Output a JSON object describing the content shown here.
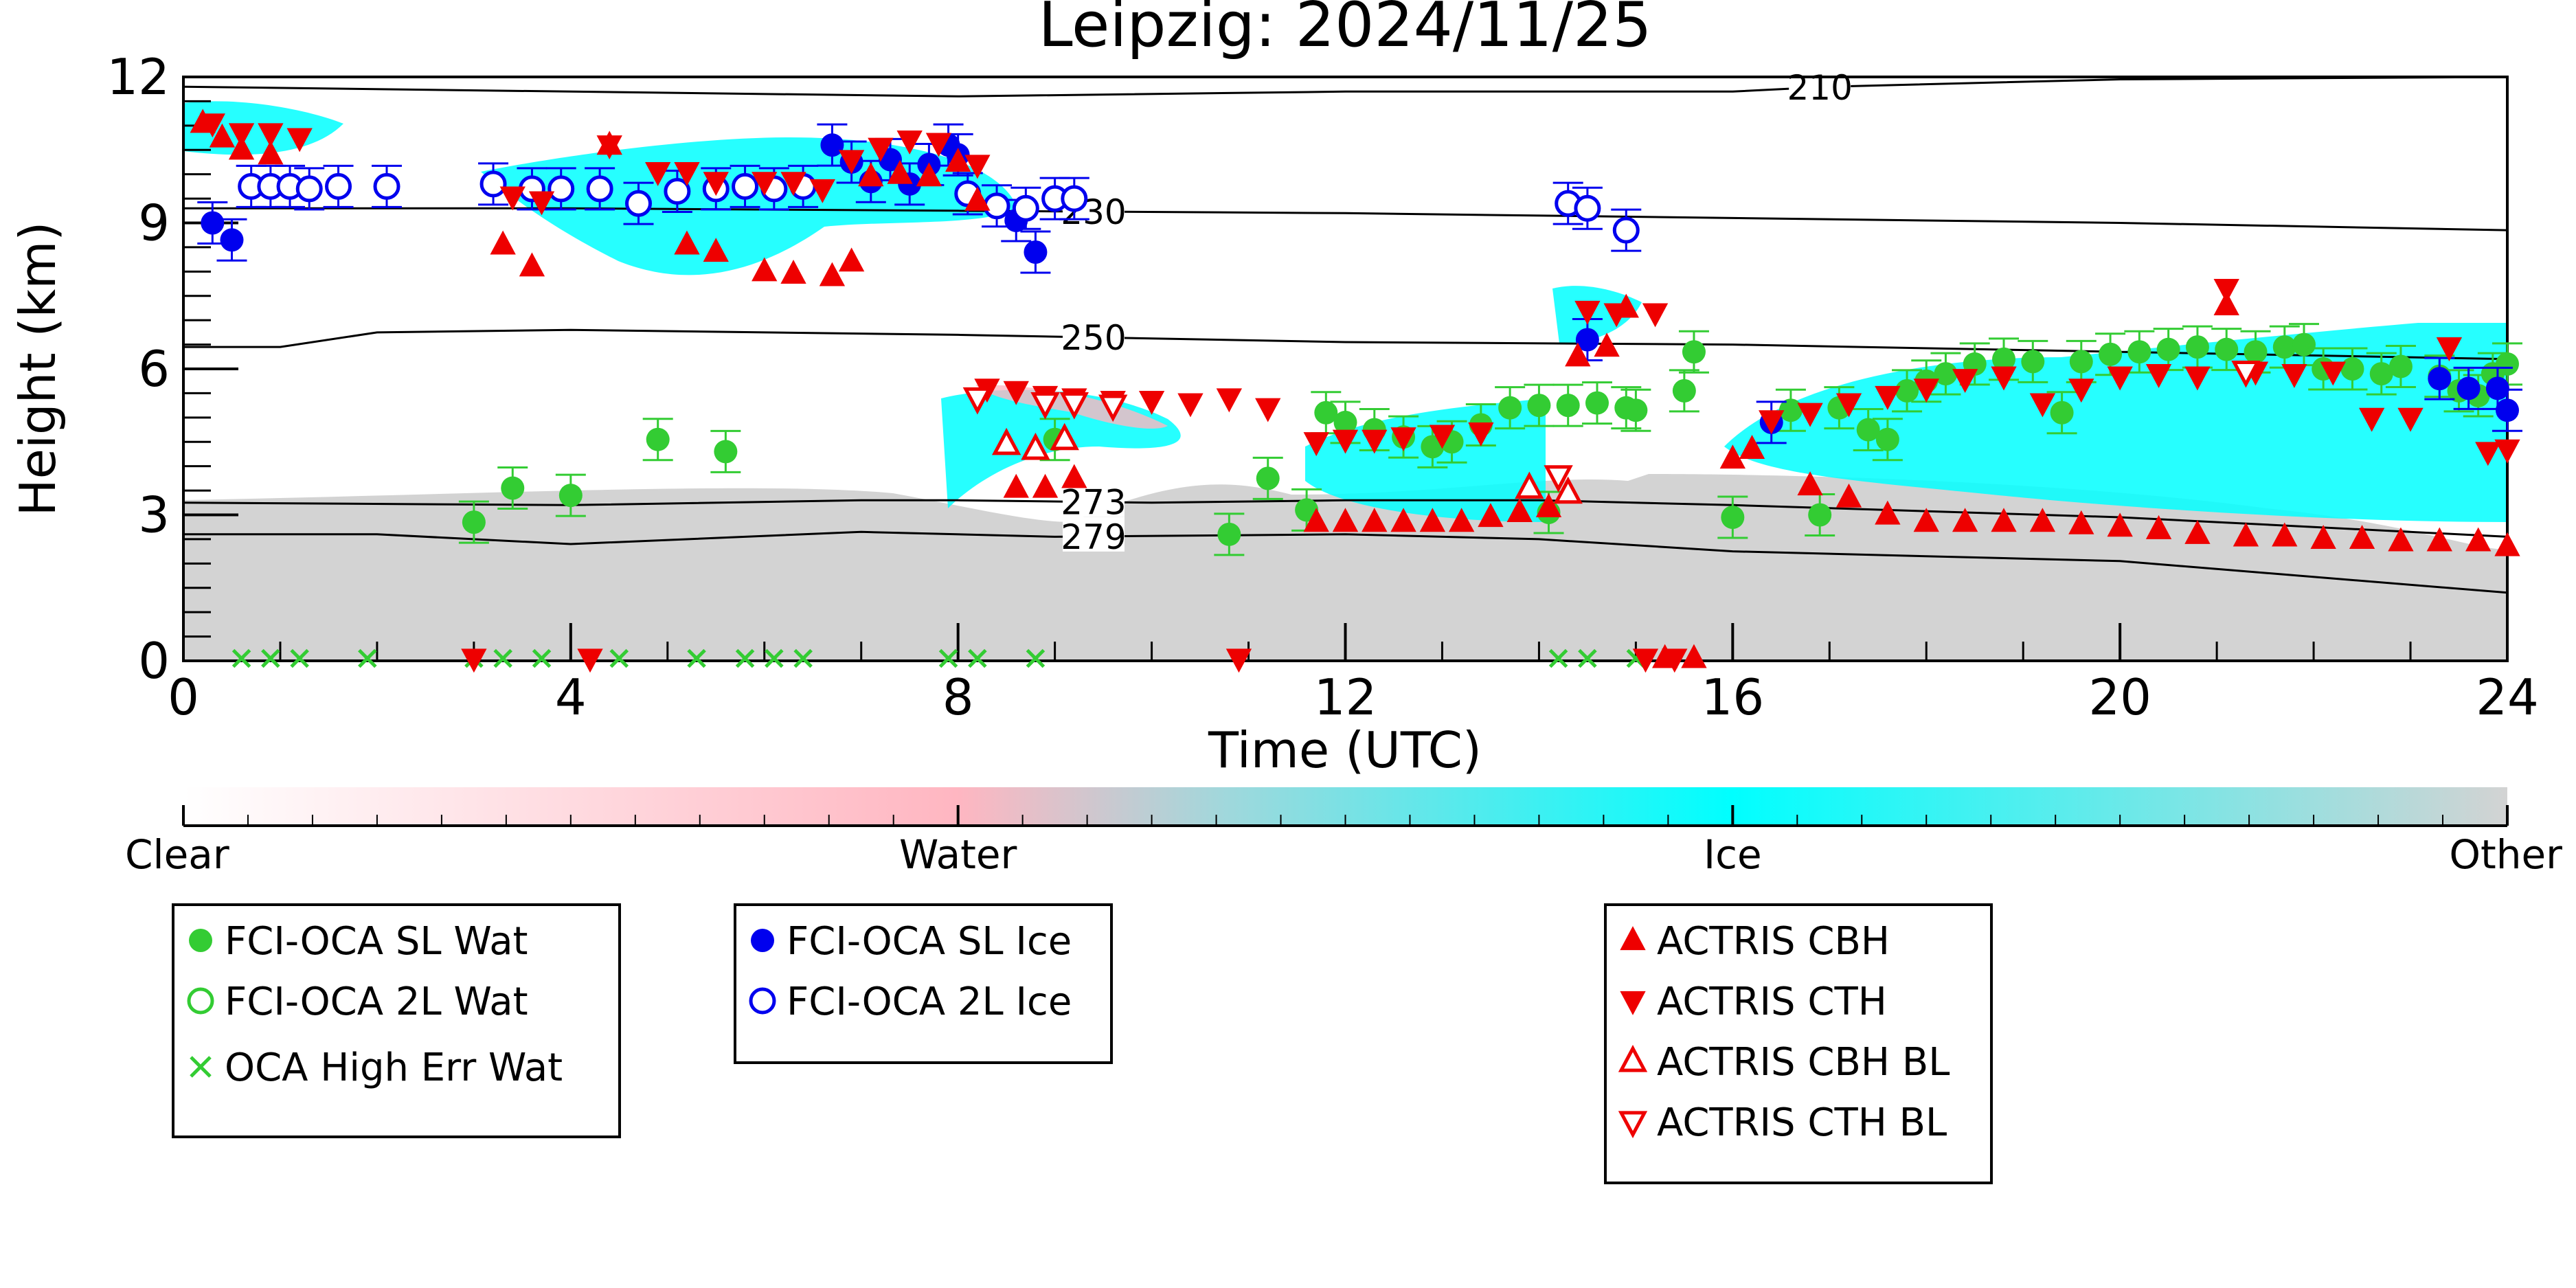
{
  "chart_data": {
    "type": "scatter",
    "title": "Leipzig: 2024/11/25",
    "xlabel": "Time (UTC)",
    "ylabel": "Height (km)",
    "xlim": [
      0,
      24
    ],
    "ylim": [
      0,
      12
    ],
    "xticks": [
      "0",
      "4",
      "8",
      "12",
      "16",
      "20",
      "24"
    ],
    "yticks": [
      "0",
      "3",
      "6",
      "9",
      "12"
    ],
    "colorbar": {
      "labels": [
        "Clear",
        "Water",
        "Ice",
        "Other"
      ],
      "colors": [
        "#ffffff",
        "#ffb6c1",
        "#00ffff",
        "#d3d3d3"
      ]
    },
    "isotherms": [
      {
        "label": "210",
        "label_x": 16.9,
        "points": [
          [
            0,
            11.8
          ],
          [
            4,
            11.7
          ],
          [
            8,
            11.6
          ],
          [
            12,
            11.7
          ],
          [
            16,
            11.7
          ],
          [
            17,
            11.8
          ],
          [
            20,
            11.95
          ],
          [
            24,
            12.0
          ]
        ]
      },
      {
        "label": "230",
        "label_x": 9.4,
        "points": [
          [
            0,
            9.3
          ],
          [
            4,
            9.3
          ],
          [
            8,
            9.25
          ],
          [
            12,
            9.2
          ],
          [
            16,
            9.1
          ],
          [
            20,
            9.0
          ],
          [
            24,
            8.85
          ]
        ]
      },
      {
        "label": "250",
        "label_x": 9.4,
        "points": [
          [
            0,
            6.45
          ],
          [
            1,
            6.45
          ],
          [
            2,
            6.75
          ],
          [
            4,
            6.8
          ],
          [
            8,
            6.7
          ],
          [
            12,
            6.55
          ],
          [
            16,
            6.5
          ],
          [
            20,
            6.35
          ],
          [
            24,
            6.2
          ]
        ]
      },
      {
        "label": "273",
        "label_x": 9.4,
        "points": [
          [
            0,
            3.25
          ],
          [
            4,
            3.2
          ],
          [
            7,
            3.3
          ],
          [
            8,
            3.3
          ],
          [
            10,
            3.25
          ],
          [
            12,
            3.3
          ],
          [
            14,
            3.3
          ],
          [
            16,
            3.2
          ],
          [
            20,
            2.95
          ],
          [
            24,
            2.55
          ]
        ]
      },
      {
        "label": "279",
        "label_x": 9.4,
        "points": [
          [
            0,
            2.6
          ],
          [
            2,
            2.6
          ],
          [
            4,
            2.4
          ],
          [
            7,
            2.65
          ],
          [
            9,
            2.55
          ],
          [
            12,
            2.6
          ],
          [
            14,
            2.5
          ],
          [
            16,
            2.25
          ],
          [
            20,
            2.05
          ],
          [
            24,
            1.4
          ]
        ]
      }
    ],
    "series": [
      {
        "name": "FCI-OCA SL Wat",
        "marker": "circle-filled",
        "color": "#33cc33",
        "points": [
          [
            3.0,
            2.85
          ],
          [
            3.4,
            3.55
          ],
          [
            4.0,
            3.4
          ],
          [
            4.9,
            4.55
          ],
          [
            5.6,
            4.3
          ],
          [
            9.0,
            4.55
          ],
          [
            10.8,
            2.6
          ],
          [
            11.2,
            3.75
          ],
          [
            11.6,
            3.1
          ],
          [
            11.8,
            5.1
          ],
          [
            12.0,
            4.9
          ],
          [
            12.3,
            4.75
          ],
          [
            12.6,
            4.6
          ],
          [
            12.9,
            4.4
          ],
          [
            13.1,
            4.5
          ],
          [
            13.4,
            4.85
          ],
          [
            13.7,
            5.2
          ],
          [
            14.0,
            5.25
          ],
          [
            14.3,
            5.25
          ],
          [
            14.6,
            5.3
          ],
          [
            15.0,
            5.15
          ],
          [
            14.1,
            3.05
          ],
          [
            14.9,
            5.2
          ],
          [
            15.5,
            5.55
          ],
          [
            15.6,
            6.35
          ],
          [
            16.0,
            2.95
          ],
          [
            16.6,
            5.15
          ],
          [
            16.9,
            3.0
          ],
          [
            17.1,
            5.2
          ],
          [
            17.4,
            4.75
          ],
          [
            17.6,
            4.55
          ],
          [
            17.8,
            5.55
          ],
          [
            18.0,
            5.75
          ],
          [
            18.2,
            5.9
          ],
          [
            18.5,
            6.1
          ],
          [
            18.8,
            6.2
          ],
          [
            19.1,
            6.15
          ],
          [
            19.4,
            5.1
          ],
          [
            19.6,
            6.15
          ],
          [
            19.9,
            6.3
          ],
          [
            20.2,
            6.35
          ],
          [
            20.5,
            6.4
          ],
          [
            20.8,
            6.45
          ],
          [
            21.1,
            6.4
          ],
          [
            21.4,
            6.35
          ],
          [
            21.7,
            6.45
          ],
          [
            21.9,
            6.5
          ],
          [
            22.1,
            6.0
          ],
          [
            22.4,
            6.0
          ],
          [
            22.7,
            5.9
          ],
          [
            22.9,
            6.05
          ],
          [
            23.3,
            5.85
          ],
          [
            23.5,
            5.55
          ],
          [
            23.7,
            5.45
          ],
          [
            23.85,
            5.9
          ],
          [
            24.0,
            6.1
          ]
        ]
      },
      {
        "name": "FCI-OCA 2L Wat",
        "marker": "circle-open",
        "color": "#33cc33",
        "points": []
      },
      {
        "name": "OCA High Err Wat",
        "marker": "x",
        "color": "#33cc33",
        "points": [
          [
            0.6,
            0.05
          ],
          [
            0.9,
            0.05
          ],
          [
            1.2,
            0.05
          ],
          [
            1.9,
            0.05
          ],
          [
            3.0,
            0.05
          ],
          [
            3.3,
            0.05
          ],
          [
            3.7,
            0.05
          ],
          [
            4.5,
            0.05
          ],
          [
            5.3,
            0.05
          ],
          [
            5.8,
            0.05
          ],
          [
            6.1,
            0.05
          ],
          [
            6.4,
            0.05
          ],
          [
            7.9,
            0.05
          ],
          [
            8.2,
            0.05
          ],
          [
            8.8,
            0.05
          ],
          [
            14.2,
            0.05
          ],
          [
            14.5,
            0.05
          ],
          [
            15.0,
            0.05
          ]
        ]
      },
      {
        "name": "FCI-OCA SL Ice",
        "marker": "circle-filled",
        "color": "#0000ee",
        "points": [
          [
            0.3,
            9.0
          ],
          [
            0.5,
            8.65
          ],
          [
            6.7,
            10.6
          ],
          [
            6.9,
            10.25
          ],
          [
            7.1,
            9.85
          ],
          [
            7.3,
            10.3
          ],
          [
            7.5,
            9.8
          ],
          [
            7.7,
            10.2
          ],
          [
            7.9,
            10.6
          ],
          [
            8.0,
            10.4
          ],
          [
            8.6,
            9.05
          ],
          [
            8.8,
            8.4
          ],
          [
            14.5,
            6.6
          ],
          [
            16.4,
            4.9
          ],
          [
            23.3,
            5.8
          ],
          [
            23.6,
            5.6
          ],
          [
            23.9,
            5.6
          ],
          [
            24.0,
            5.15
          ]
        ]
      },
      {
        "name": "FCI-OCA 2L Ice",
        "marker": "circle-open",
        "color": "#0000ee",
        "points": [
          [
            0.7,
            9.75
          ],
          [
            0.9,
            9.75
          ],
          [
            1.1,
            9.75
          ],
          [
            1.3,
            9.7
          ],
          [
            1.6,
            9.75
          ],
          [
            2.1,
            9.75
          ],
          [
            3.2,
            9.8
          ],
          [
            3.6,
            9.7
          ],
          [
            3.9,
            9.7
          ],
          [
            4.3,
            9.7
          ],
          [
            4.7,
            9.4
          ],
          [
            5.1,
            9.65
          ],
          [
            5.5,
            9.7
          ],
          [
            5.8,
            9.75
          ],
          [
            6.1,
            9.7
          ],
          [
            6.4,
            9.75
          ],
          [
            8.1,
            9.6
          ],
          [
            8.4,
            9.35
          ],
          [
            8.7,
            9.3
          ],
          [
            9.0,
            9.5
          ],
          [
            9.2,
            9.5
          ],
          [
            14.3,
            9.4
          ],
          [
            14.5,
            9.3
          ],
          [
            14.9,
            8.85
          ]
        ]
      },
      {
        "name": "ACTRIS CBH",
        "marker": "triangle-up-filled",
        "color": "#ee0000",
        "points": [
          [
            0.2,
            11.05
          ],
          [
            0.4,
            10.75
          ],
          [
            0.6,
            10.5
          ],
          [
            0.9,
            10.4
          ],
          [
            3.3,
            8.55
          ],
          [
            3.6,
            8.1
          ],
          [
            4.4,
            10.6
          ],
          [
            5.2,
            8.55
          ],
          [
            5.5,
            8.4
          ],
          [
            6.0,
            8.0
          ],
          [
            6.3,
            7.95
          ],
          [
            6.7,
            7.9
          ],
          [
            6.9,
            8.2
          ],
          [
            7.1,
            9.95
          ],
          [
            7.4,
            10.0
          ],
          [
            7.7,
            9.95
          ],
          [
            8.0,
            10.25
          ],
          [
            8.2,
            9.45
          ],
          [
            8.6,
            3.55
          ],
          [
            8.9,
            3.55
          ],
          [
            9.2,
            3.75
          ],
          [
            11.7,
            2.85
          ],
          [
            12.0,
            2.85
          ],
          [
            12.3,
            2.85
          ],
          [
            12.6,
            2.85
          ],
          [
            12.9,
            2.85
          ],
          [
            13.2,
            2.85
          ],
          [
            13.5,
            2.95
          ],
          [
            13.8,
            3.05
          ],
          [
            14.1,
            3.15
          ],
          [
            14.4,
            6.25
          ],
          [
            14.7,
            6.45
          ],
          [
            14.9,
            7.25
          ],
          [
            16.0,
            4.15
          ],
          [
            16.2,
            4.35
          ],
          [
            16.8,
            3.6
          ],
          [
            17.2,
            3.35
          ],
          [
            17.6,
            3.0
          ],
          [
            18.0,
            2.85
          ],
          [
            18.4,
            2.85
          ],
          [
            18.8,
            2.85
          ],
          [
            19.2,
            2.85
          ],
          [
            19.6,
            2.8
          ],
          [
            20.0,
            2.75
          ],
          [
            20.4,
            2.7
          ],
          [
            20.8,
            2.6
          ],
          [
            21.1,
            7.3
          ],
          [
            21.3,
            2.55
          ],
          [
            21.7,
            2.55
          ],
          [
            22.1,
            2.5
          ],
          [
            22.5,
            2.5
          ],
          [
            22.9,
            2.45
          ],
          [
            23.3,
            2.45
          ],
          [
            23.7,
            2.45
          ],
          [
            24.0,
            2.35
          ],
          [
            15.3,
            0.05
          ],
          [
            15.6,
            0.05
          ]
        ]
      },
      {
        "name": "ACTRIS CTH",
        "marker": "triangle-down-filled",
        "color": "#ee0000",
        "points": [
          [
            0.3,
            11.05
          ],
          [
            0.6,
            10.85
          ],
          [
            0.9,
            10.85
          ],
          [
            1.2,
            10.75
          ],
          [
            3.4,
            9.55
          ],
          [
            3.7,
            9.45
          ],
          [
            4.4,
            10.6
          ],
          [
            4.9,
            10.05
          ],
          [
            5.2,
            10.05
          ],
          [
            5.5,
            9.85
          ],
          [
            6.0,
            9.85
          ],
          [
            6.3,
            9.85
          ],
          [
            6.6,
            9.7
          ],
          [
            6.9,
            10.3
          ],
          [
            7.2,
            10.55
          ],
          [
            7.5,
            10.7
          ],
          [
            7.8,
            10.65
          ],
          [
            8.2,
            10.2
          ],
          [
            8.3,
            5.6
          ],
          [
            8.6,
            5.55
          ],
          [
            8.9,
            5.45
          ],
          [
            9.2,
            5.4
          ],
          [
            9.6,
            5.35
          ],
          [
            10.0,
            5.35
          ],
          [
            10.4,
            5.3
          ],
          [
            10.8,
            5.4
          ],
          [
            11.2,
            5.2
          ],
          [
            11.7,
            4.5
          ],
          [
            12.0,
            4.55
          ],
          [
            12.3,
            4.55
          ],
          [
            12.6,
            4.6
          ],
          [
            13.0,
            4.65
          ],
          [
            13.4,
            4.7
          ],
          [
            14.5,
            7.2
          ],
          [
            14.8,
            7.15
          ],
          [
            15.2,
            7.15
          ],
          [
            16.4,
            4.95
          ],
          [
            16.8,
            5.1
          ],
          [
            17.2,
            5.3
          ],
          [
            17.6,
            5.45
          ],
          [
            18.0,
            5.6
          ],
          [
            18.4,
            5.8
          ],
          [
            18.8,
            5.85
          ],
          [
            19.2,
            5.3
          ],
          [
            19.6,
            5.6
          ],
          [
            20.0,
            5.85
          ],
          [
            20.4,
            5.9
          ],
          [
            20.8,
            5.85
          ],
          [
            21.1,
            7.65
          ],
          [
            21.4,
            5.95
          ],
          [
            21.8,
            5.9
          ],
          [
            22.2,
            5.95
          ],
          [
            22.6,
            5.0
          ],
          [
            23.0,
            5.0
          ],
          [
            23.4,
            6.45
          ],
          [
            23.8,
            4.3
          ],
          [
            24.0,
            4.35
          ],
          [
            4.2,
            0.05
          ],
          [
            10.9,
            0.05
          ],
          [
            15.1,
            0.05
          ],
          [
            15.4,
            0.05
          ],
          [
            3.0,
            0.05
          ]
        ]
      },
      {
        "name": "ACTRIS CBH BL",
        "marker": "triangle-up-open",
        "color": "#ee0000",
        "points": [
          [
            8.5,
            4.45
          ],
          [
            8.8,
            4.35
          ],
          [
            9.1,
            4.55
          ],
          [
            13.9,
            3.55
          ],
          [
            14.3,
            3.45
          ]
        ]
      },
      {
        "name": "ACTRIS CTH BL",
        "marker": "triangle-down-open",
        "color": "#ee0000",
        "points": [
          [
            8.2,
            5.4
          ],
          [
            8.9,
            5.3
          ],
          [
            9.2,
            5.3
          ],
          [
            9.6,
            5.25
          ],
          [
            14.2,
            3.8
          ],
          [
            21.3,
            5.95
          ]
        ]
      }
    ],
    "legend_placement": "below"
  }
}
